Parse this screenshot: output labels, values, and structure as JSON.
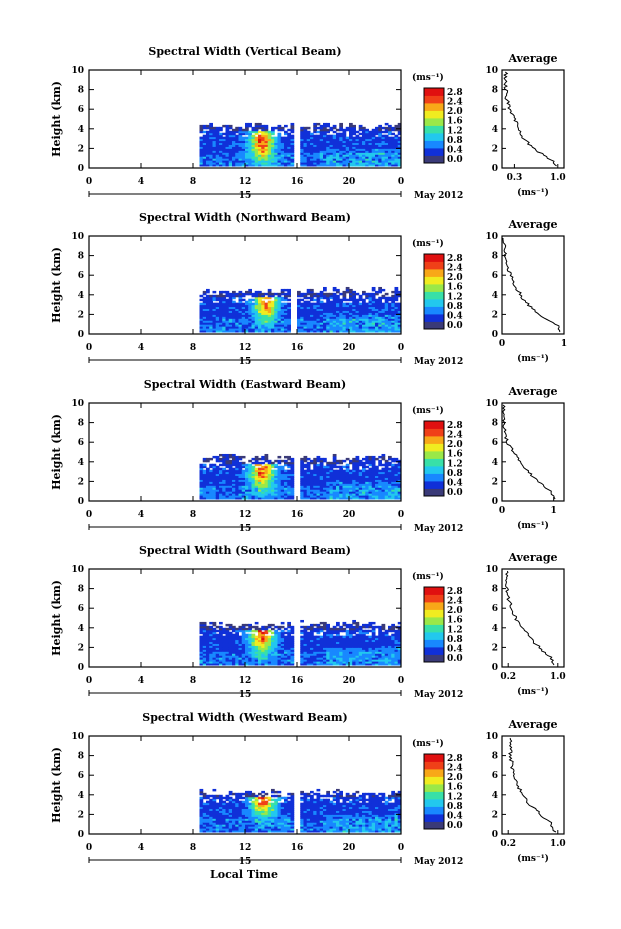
{
  "figure": {
    "x_label": "Local Time",
    "date_label": "May 2012",
    "day_marker": "15",
    "colorbar_unit": "(ms⁻¹)",
    "colorbar_ticks": [
      "2.8",
      "2.4",
      "2.0",
      "1.6",
      "1.2",
      "0.8",
      "0.4",
      "0.0"
    ],
    "avg_title": "Average",
    "avg_xlabel": "(ms⁻¹)",
    "y_label": "Height (km)"
  },
  "colors": {
    "scale": [
      "#3a3a78",
      "#1030d8",
      "#1888ff",
      "#22c8ee",
      "#38e0a8",
      "#9ae848",
      "#f0ec20",
      "#f8a818",
      "#f04018",
      "#e01010"
    ]
  },
  "chart_data": [
    {
      "type": "heatmap",
      "title": "Spectral Width (Vertical Beam)",
      "x_ticks": [
        "0",
        "4",
        "8",
        "12",
        "16",
        "20",
        "0"
      ],
      "x_range": [
        0,
        24
      ],
      "y_ticks": [
        "0",
        "2",
        "4",
        "6",
        "8",
        "10"
      ],
      "y_range": [
        0,
        10
      ],
      "color_range": [
        0.0,
        3.0
      ],
      "data_window": {
        "start_h": 8.5,
        "end_h": 24,
        "max_height_km": 4.6
      },
      "convective_peak": {
        "time_h": 13.2,
        "height_km": 2.5,
        "value": 2.8
      },
      "gaps_h": [
        15.9
      ],
      "average": {
        "x_ticks": [
          "0.3",
          "1.0"
        ],
        "x_range": [
          0.1,
          1.1
        ],
        "height_km": [
          0.2,
          1,
          2,
          3,
          4,
          5,
          6,
          7,
          8,
          9,
          9.8
        ],
        "width": [
          1.0,
          0.85,
          0.6,
          0.45,
          0.38,
          0.3,
          0.22,
          0.18,
          0.16,
          0.15,
          0.16
        ]
      }
    },
    {
      "type": "heatmap",
      "title": "Spectral Width (Northward Beam)",
      "x_ticks": [
        "0",
        "4",
        "8",
        "12",
        "16",
        "20",
        "0"
      ],
      "x_range": [
        0,
        24
      ],
      "y_ticks": [
        "0",
        "2",
        "4",
        "6",
        "8",
        "10"
      ],
      "y_range": [
        0,
        10
      ],
      "color_range": [
        0.0,
        3.0
      ],
      "data_window": {
        "start_h": 8.5,
        "end_h": 24,
        "max_height_km": 4.7
      },
      "convective_peak": {
        "time_h": 13.5,
        "height_km": 3.0,
        "value": 2.6
      },
      "gaps_h": [
        15.6
      ],
      "average": {
        "x_ticks": [
          "0",
          "1"
        ],
        "x_range": [
          0,
          1
        ],
        "height_km": [
          0.2,
          1,
          2,
          3,
          4,
          5,
          6,
          7,
          8,
          9,
          9.8
        ],
        "width": [
          0.95,
          0.88,
          0.6,
          0.42,
          0.3,
          0.2,
          0.14,
          0.08,
          0.05,
          0.03,
          0.02
        ]
      }
    },
    {
      "type": "heatmap",
      "title": "Spectral Width (Eastward Beam)",
      "x_ticks": [
        "0",
        "4",
        "8",
        "12",
        "16",
        "20",
        "0"
      ],
      "x_range": [
        0,
        24
      ],
      "y_ticks": [
        "0",
        "2",
        "4",
        "6",
        "8",
        "10"
      ],
      "y_range": [
        0,
        10
      ],
      "color_range": [
        0.0,
        3.0
      ],
      "data_window": {
        "start_h": 8.5,
        "end_h": 24,
        "max_height_km": 4.7
      },
      "convective_peak": {
        "time_h": 13.2,
        "height_km": 3.0,
        "value": 2.7
      },
      "gaps_h": [
        15.9
      ],
      "average": {
        "x_ticks": [
          "0",
          "1"
        ],
        "x_range": [
          0,
          1.2
        ],
        "height_km": [
          0.2,
          1,
          2,
          3,
          4,
          5,
          6,
          7,
          8,
          9,
          9.8
        ],
        "width": [
          1.0,
          0.95,
          0.7,
          0.5,
          0.35,
          0.22,
          0.1,
          0.06,
          0.04,
          0.03,
          0.03
        ]
      }
    },
    {
      "type": "heatmap",
      "title": "Spectral Width (Southward Beam)",
      "x_ticks": [
        "0",
        "4",
        "8",
        "12",
        "16",
        "20",
        "0"
      ],
      "x_range": [
        0,
        24
      ],
      "y_ticks": [
        "0",
        "2",
        "4",
        "6",
        "8",
        "10"
      ],
      "y_range": [
        0,
        10
      ],
      "color_range": [
        0.0,
        3.0
      ],
      "data_window": {
        "start_h": 8.5,
        "end_h": 24,
        "max_height_km": 4.7
      },
      "convective_peak": {
        "time_h": 13.2,
        "height_km": 3.2,
        "value": 2.8
      },
      "gaps_h": [
        15.9
      ],
      "average": {
        "x_ticks": [
          "0.2",
          "1.0"
        ],
        "x_range": [
          0.1,
          1.1
        ],
        "height_km": [
          0.2,
          1,
          2,
          3,
          4,
          5,
          6,
          7,
          8,
          9,
          9.8
        ],
        "width": [
          0.95,
          0.88,
          0.7,
          0.55,
          0.42,
          0.32,
          0.25,
          0.2,
          0.18,
          0.16,
          0.17
        ]
      }
    },
    {
      "type": "heatmap",
      "title": "Spectral Width (Westward Beam)",
      "x_ticks": [
        "0",
        "4",
        "8",
        "12",
        "16",
        "20",
        "0"
      ],
      "x_range": [
        0,
        24
      ],
      "y_ticks": [
        "0",
        "2",
        "4",
        "6",
        "8",
        "10"
      ],
      "y_range": [
        0,
        10
      ],
      "color_range": [
        0.0,
        3.0
      ],
      "data_window": {
        "start_h": 8.5,
        "end_h": 24,
        "max_height_km": 4.5
      },
      "convective_peak": {
        "time_h": 13.3,
        "height_km": 3.5,
        "value": 2.8
      },
      "gaps_h": [
        15.9
      ],
      "average": {
        "x_ticks": [
          "0.2",
          "1.0"
        ],
        "x_range": [
          0.1,
          1.1
        ],
        "height_km": [
          0.2,
          1,
          2,
          3,
          4,
          5,
          6,
          7,
          8,
          9,
          9.8
        ],
        "width": [
          0.95,
          0.9,
          0.72,
          0.55,
          0.42,
          0.35,
          0.3,
          0.26,
          0.24,
          0.24,
          0.25
        ]
      }
    }
  ]
}
